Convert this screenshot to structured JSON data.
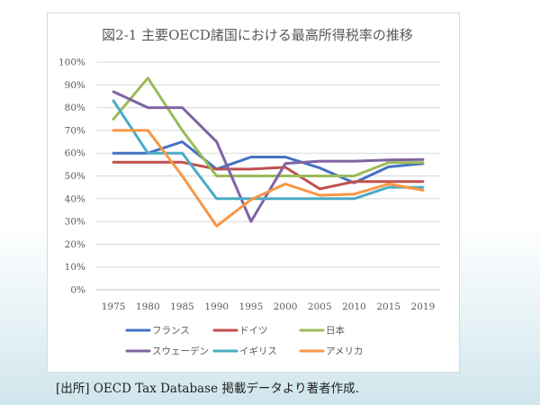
{
  "chart_data": {
    "type": "line",
    "title": "図2-1 主要OECD諸国における最高所得税率の推移",
    "x": [
      "1975",
      "1980",
      "1985",
      "1990",
      "1995",
      "2000",
      "2005",
      "2010",
      "2015",
      "2019"
    ],
    "yticks": [
      "0%",
      "10%",
      "20%",
      "30%",
      "40%",
      "50%",
      "60%",
      "70%",
      "80%",
      "90%",
      "100%"
    ],
    "ylim": [
      0,
      100
    ],
    "grid": true,
    "legend_position": "bottom",
    "series": [
      {
        "name": "フランス",
        "color": "#4472C4",
        "values": [
          60,
          60,
          65,
          53,
          58.3,
          58.3,
          53.5,
          47,
          54,
          55.4
        ]
      },
      {
        "name": "ドイツ",
        "color": "#C0504D",
        "values": [
          56,
          56,
          56,
          53,
          53,
          53.8,
          44.3,
          47.5,
          47.5,
          47.5
        ]
      },
      {
        "name": "日本",
        "color": "#9BBB59",
        "values": [
          75,
          93,
          70,
          50,
          50,
          50,
          50,
          50,
          55.9,
          55.9
        ]
      },
      {
        "name": "スウェーデン",
        "color": "#8064A2",
        "values": [
          87,
          80,
          80,
          65,
          30,
          55.5,
          56.5,
          56.5,
          57,
          57.2
        ]
      },
      {
        "name": "イギリス",
        "color": "#4BACC6",
        "values": [
          83,
          60,
          60,
          40,
          40,
          40,
          40,
          40,
          45,
          45
        ]
      },
      {
        "name": "アメリカ",
        "color": "#F79646",
        "values": [
          70,
          70,
          50,
          28,
          39.6,
          46.5,
          41.5,
          42,
          46.5,
          43.7
        ]
      }
    ]
  },
  "source_text": "[出所] OECD Tax Database 掲載データより著者作成."
}
